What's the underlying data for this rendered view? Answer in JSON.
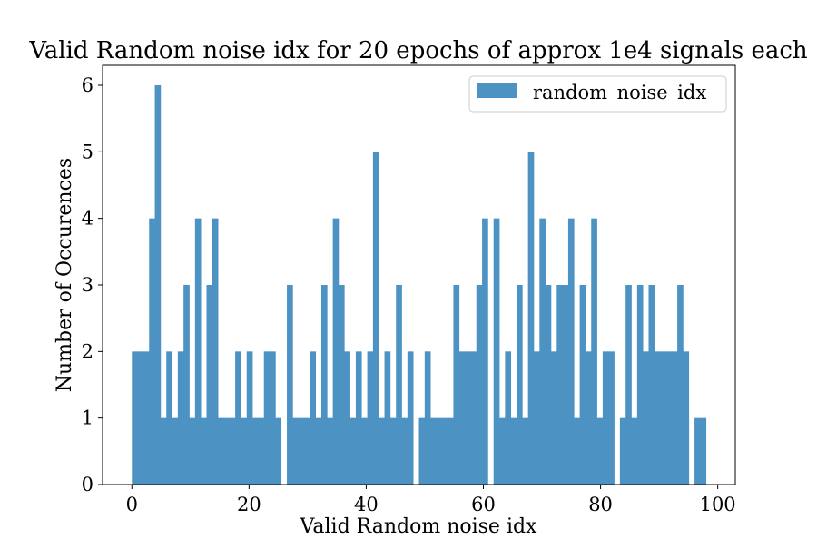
{
  "chart_data": {
    "type": "bar",
    "title": "Valid Random noise idx for 20 epochs of approx 1e4 signals each",
    "xlabel": "Valid Random noise idx",
    "ylabel": "Number of Occurences",
    "xlim": [
      -5,
      103
    ],
    "ylim": [
      0,
      6.3
    ],
    "xticks": [
      0,
      20,
      40,
      60,
      80,
      100
    ],
    "xtick_labels": [
      "0",
      "20",
      "40",
      "60",
      "80",
      "100"
    ],
    "yticks": [
      0,
      1,
      2,
      3,
      4,
      5,
      6
    ],
    "ytick_labels": [
      "0",
      "1",
      "2",
      "3",
      "4",
      "5",
      "6"
    ],
    "legend": {
      "labels": [
        "random_noise_idx"
      ],
      "position": "top-right"
    },
    "grid": false,
    "bin_start": 0,
    "bin_width": 0.98,
    "series": [
      {
        "name": "random_noise_idx",
        "color": "#4c92c3",
        "values": [
          2,
          2,
          2,
          4,
          6,
          1,
          2,
          1,
          2,
          3,
          1,
          4,
          1,
          3,
          4,
          1,
          1,
          1,
          2,
          1,
          2,
          1,
          1,
          2,
          2,
          1,
          0,
          3,
          1,
          1,
          1,
          2,
          1,
          3,
          1,
          4,
          3,
          2,
          1,
          2,
          1,
          2,
          5,
          1,
          2,
          1,
          3,
          1,
          2,
          0,
          1,
          2,
          1,
          1,
          1,
          1,
          3,
          2,
          2,
          2,
          3,
          4,
          0,
          4,
          1,
          2,
          1,
          3,
          1,
          5,
          2,
          4,
          3,
          2,
          3,
          3,
          4,
          1,
          3,
          2,
          4,
          1,
          2,
          2,
          0,
          1,
          3,
          1,
          3,
          2,
          3,
          2,
          2,
          2,
          2,
          3,
          2,
          0,
          1,
          1
        ]
      }
    ]
  }
}
